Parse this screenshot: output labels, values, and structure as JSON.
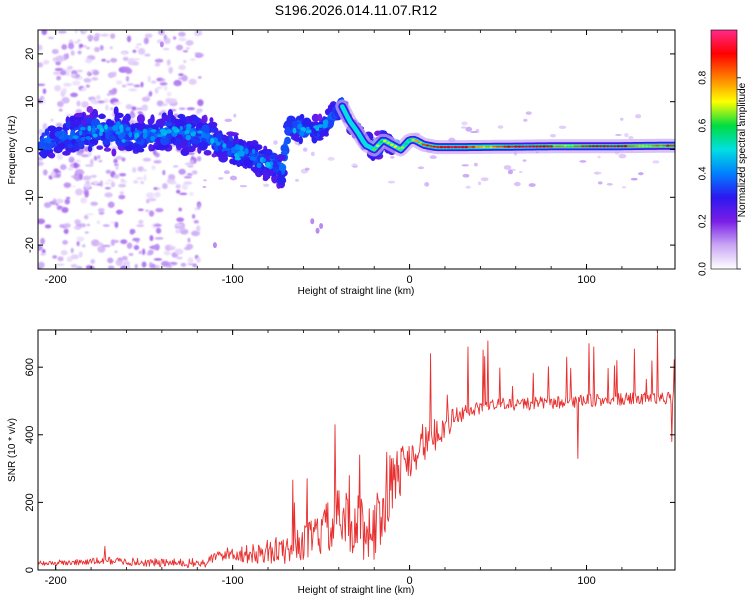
{
  "figure": {
    "title": "S196.2026.014.11.07.R12"
  },
  "colors": {
    "snr_line": "#e83030",
    "frame": "#000000",
    "background": "#ffffff"
  },
  "chart_data": [
    {
      "type": "heatmap",
      "name": "spectrogram",
      "xlabel": "Height of straight line (km)",
      "ylabel": "Frequency (Hz)",
      "xlim": [
        -210,
        150
      ],
      "ylim": [
        -25,
        25
      ],
      "xticks": [
        -200,
        -100,
        0,
        100
      ],
      "yticks": [
        -20,
        -10,
        0,
        10,
        20
      ],
      "xtick_labels": [
        "-200",
        "-100",
        "0",
        "100"
      ],
      "ytick_labels": [
        "-20",
        "-10",
        "0",
        "10",
        "20"
      ],
      "colorbar": {
        "label": "Normalized spectral amplitude",
        "range": [
          0,
          1
        ],
        "ticks": [
          0.0,
          0.2,
          0.4,
          0.6,
          0.8
        ],
        "tick_labels": [
          "0.0",
          "0.2",
          "0.4",
          "0.6",
          "0.8"
        ],
        "colormap": [
          "#ffffff",
          "#c9a6f5",
          "#7a1ee6",
          "#2c18f0",
          "#0080ff",
          "#00e0e0",
          "#00dc40",
          "#ffff00",
          "#ff8000",
          "#ff0000",
          "#ff2a8a"
        ]
      },
      "trace": {
        "x": [
          -210,
          -190,
          -170,
          -150,
          -130,
          -115,
          -100,
          -90,
          -80,
          -72,
          -68,
          -60,
          -50,
          -42,
          -38,
          -34,
          -30,
          -25,
          -20,
          -15,
          -10,
          -5,
          0,
          3,
          8,
          15,
          30,
          60,
          90,
          120,
          150
        ],
        "freq": [
          1,
          3,
          4,
          3,
          4,
          3,
          0,
          -2,
          -3,
          -4,
          5,
          4,
          4,
          8,
          9,
          6,
          4,
          1,
          0,
          2,
          1,
          0,
          2,
          2,
          1,
          0.5,
          0.5,
          0.6,
          0.7,
          0.7,
          0.8
        ]
      }
    },
    {
      "type": "line",
      "name": "snr",
      "xlabel": "Height of straight line (km)",
      "ylabel": "SNR (10 * v/v)",
      "xlim": [
        -210,
        150
      ],
      "ylim": [
        0,
        710
      ],
      "xticks": [
        -200,
        -100,
        0,
        100
      ],
      "yticks": [
        0,
        200,
        400,
        600
      ],
      "xtick_labels": [
        "-200",
        "-100",
        "0",
        "100"
      ],
      "ytick_labels": [
        "0",
        "200",
        "400",
        "600"
      ],
      "envelope": {
        "x": [
          -210,
          -190,
          -170,
          -150,
          -130,
          -115,
          -110,
          -100,
          -90,
          -80,
          -70,
          -60,
          -50,
          -40,
          -30,
          -20,
          -15,
          -10,
          -5,
          0,
          5,
          10,
          15,
          20,
          30,
          40,
          50,
          60,
          80,
          100,
          120,
          150
        ],
        "y": [
          20,
          22,
          28,
          22,
          20,
          20,
          40,
          50,
          45,
          55,
          60,
          80,
          110,
          150,
          130,
          120,
          170,
          250,
          300,
          330,
          370,
          380,
          400,
          430,
          460,
          480,
          490,
          490,
          495,
          500,
          505,
          510
        ]
      },
      "noise": {
        "x": [
          -210,
          -110,
          -60,
          -40,
          -20,
          0,
          20,
          40,
          150
        ],
        "y": [
          8,
          15,
          50,
          90,
          100,
          70,
          40,
          20,
          18
        ]
      },
      "spikes": [
        {
          "x": -172,
          "y": 70
        },
        {
          "x": -58,
          "y": 270
        },
        {
          "x": -42,
          "y": 430
        },
        {
          "x": -28,
          "y": 340
        },
        {
          "x": 12,
          "y": 640
        },
        {
          "x": 33,
          "y": 660
        },
        {
          "x": 95,
          "y": 330
        },
        {
          "x": 140,
          "y": 700
        },
        {
          "x": 148,
          "y": 380
        }
      ]
    }
  ]
}
